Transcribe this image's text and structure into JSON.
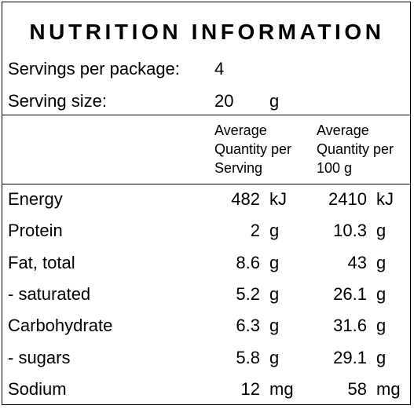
{
  "title": "NUTRITION INFORMATION",
  "servings": {
    "label": "Servings per package:",
    "value": "4"
  },
  "serving_size": {
    "label": "Serving size:",
    "value": "20",
    "unit": "g"
  },
  "columns": {
    "per_serving": [
      "Average",
      "Quantity per",
      "Serving"
    ],
    "per_100g": [
      "Average",
      "Quantity per",
      "100 g"
    ]
  },
  "rows": [
    {
      "name": "Energy",
      "serving": "482",
      "serving_unit": "kJ",
      "per100": "2410",
      "per100_unit": "kJ"
    },
    {
      "name": "Protein",
      "serving": "2",
      "serving_unit": "g",
      "per100": "10.3",
      "per100_unit": "g"
    },
    {
      "name": "Fat, total",
      "serving": "8.6",
      "serving_unit": "g",
      "per100": "43",
      "per100_unit": "g"
    },
    {
      "name": "- saturated",
      "serving": "5.2",
      "serving_unit": "g",
      "per100": "26.1",
      "per100_unit": "g"
    },
    {
      "name": "Carbohydrate",
      "serving": "6.3",
      "serving_unit": "g",
      "per100": "31.6",
      "per100_unit": "g"
    },
    {
      "name": "- sugars",
      "serving": "5.8",
      "serving_unit": "g",
      "per100": "29.1",
      "per100_unit": "g"
    },
    {
      "name": "Sodium",
      "serving": "12",
      "serving_unit": "mg",
      "per100": "58",
      "per100_unit": "mg"
    }
  ]
}
